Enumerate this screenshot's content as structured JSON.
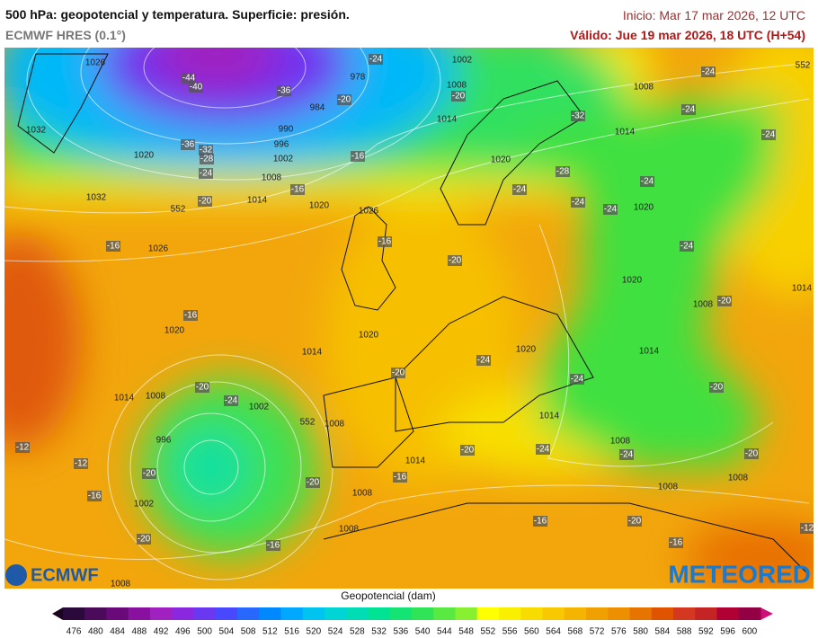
{
  "header": {
    "title": "500 hPa: geopotencial y temperatura. Superficie: presión.",
    "model": "ECMWF HRES (0.1°)",
    "init": "Inicio: Mar 17 mar 2026, 12 UTC",
    "valid": "Válido: Jue 19 mar 2026, 18 UTC (H+54)"
  },
  "map_labels": [
    "1026",
    "-44",
    "-40",
    "-36",
    "978",
    "-24",
    "1002",
    "1008",
    "-20",
    "1008",
    "-24",
    "-24",
    "984",
    "-20",
    "1014",
    "-32",
    "1032",
    "990",
    "996",
    "-36",
    "-32",
    "-28",
    "-16",
    "1020",
    "1014",
    "-24",
    "1020",
    "1002",
    "-24",
    "1008",
    "-16",
    "-28",
    "1032",
    "-20",
    "1014",
    "1020",
    "1026",
    "-24",
    "-24",
    "-24",
    "-24",
    "1020",
    "-16",
    "1026",
    "-16",
    "-20",
    "-24",
    "1020",
    "1014",
    "-20",
    "1008",
    "-16",
    "1020",
    "1020",
    "1014",
    "1020",
    "-24",
    "1014",
    "-20",
    "-24",
    "-20",
    "1014",
    "1008",
    "-24",
    "1002",
    "-20",
    "1014",
    "1008",
    "-12",
    "996",
    "-20",
    "-24",
    "1008",
    "-24",
    "-20",
    "-12",
    "-20",
    "1014",
    "-20",
    "-16",
    "1008",
    "1008",
    "-16",
    "1002",
    "1008",
    "-16",
    "-20",
    "-12",
    "-20",
    "1008",
    "-16",
    "-16",
    "1008",
    "552",
    "552",
    "552"
  ],
  "logos": {
    "left": "ECMWF",
    "right": "METEORED"
  },
  "colorbar": {
    "label": "Geopotencial (dam)",
    "ticks": [
      476,
      480,
      484,
      488,
      492,
      496,
      500,
      504,
      508,
      512,
      516,
      520,
      524,
      528,
      532,
      536,
      540,
      544,
      548,
      552,
      556,
      560,
      564,
      568,
      572,
      576,
      580,
      584,
      588,
      592,
      596,
      600
    ],
    "colors": [
      "#2a0a3a",
      "#4b0a5a",
      "#6a0a7a",
      "#8a10a0",
      "#a020c0",
      "#8a28e0",
      "#6a38f0",
      "#4848ff",
      "#2868ff",
      "#0088ff",
      "#00a8ff",
      "#00c4f0",
      "#00d4d4",
      "#00dcb4",
      "#00e294",
      "#14e474",
      "#30e458",
      "#58ea40",
      "#88f030",
      "#ffff00",
      "#f8f000",
      "#f8dc00",
      "#f8c800",
      "#f4b400",
      "#f0a000",
      "#ec9000",
      "#e87400",
      "#e05400",
      "#d43820",
      "#c42424",
      "#b00034",
      "#940044"
    ]
  }
}
